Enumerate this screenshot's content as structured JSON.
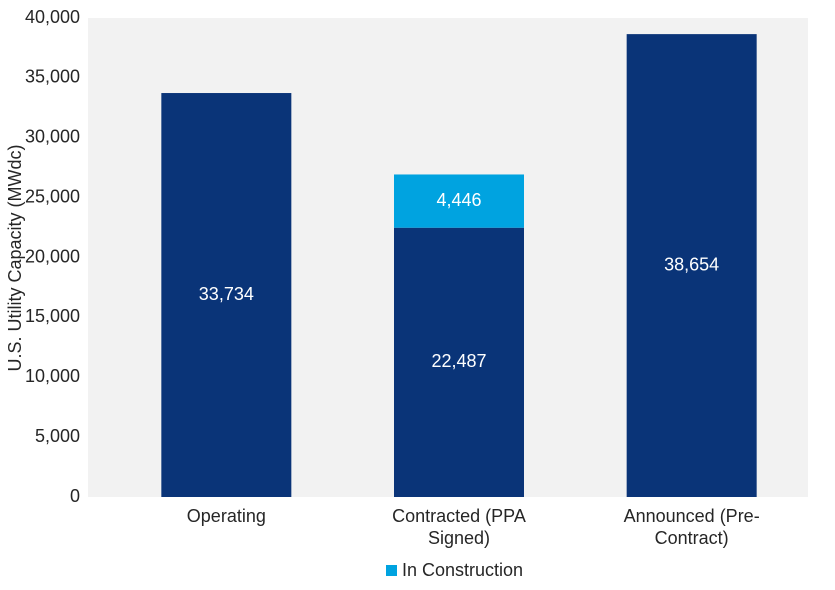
{
  "chart_data": {
    "type": "bar",
    "stacked": true,
    "y_label": "U.S. Utility Capacity (MWdc)",
    "categories": [
      "Operating",
      "Contracted (PPA Signed)",
      "Announced (Pre-Contract)"
    ],
    "series": [
      {
        "color": "#0a3478",
        "values": [
          33734,
          22487,
          38654
        ],
        "value_labels": [
          "33,734",
          "22,487",
          "38,654"
        ]
      },
      {
        "name": "In Construction",
        "color": "#00a3e0",
        "values": [
          null,
          4446,
          null
        ],
        "value_labels": [
          null,
          "4,446",
          null
        ]
      }
    ],
    "ylim": [
      0,
      40000
    ],
    "yticks": [
      0,
      {
        "value": 5000,
        "label": "5,000"
      },
      {
        "value": 10000,
        "label": "10,000"
      },
      {
        "value": 15000,
        "label": "15,000"
      },
      {
        "value": 20000,
        "label": "20,000"
      },
      {
        "value": 25000,
        "label": "25,000"
      },
      {
        "value": 30000,
        "label": "30,000"
      },
      {
        "value": 35000,
        "label": "35,000"
      },
      {
        "value": 40000,
        "label": "40,000"
      }
    ],
    "legend": "bottom",
    "grid": false
  }
}
